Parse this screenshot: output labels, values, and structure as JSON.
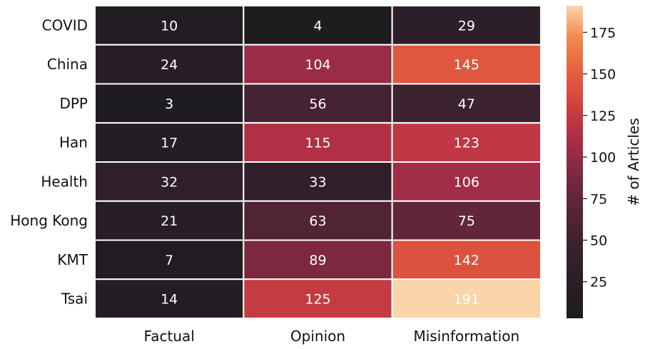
{
  "chart_data": {
    "type": "heatmap",
    "rows": [
      "COVID",
      "China",
      "DPP",
      "Han",
      "Health",
      "Hong Kong",
      "KMT",
      "Tsai"
    ],
    "columns": [
      "Factual",
      "Opinion",
      "Misinformation"
    ],
    "values": [
      [
        10,
        4,
        29
      ],
      [
        24,
        104,
        145
      ],
      [
        3,
        56,
        47
      ],
      [
        17,
        115,
        123
      ],
      [
        32,
        33,
        106
      ],
      [
        21,
        63,
        75
      ],
      [
        7,
        89,
        142
      ],
      [
        14,
        125,
        191
      ]
    ],
    "colorbar": {
      "label": "# of Articles",
      "min": 3,
      "max": 191,
      "ticks": [
        25,
        50,
        75,
        100,
        125,
        150,
        175
      ]
    },
    "colormap": "rocket",
    "colors": {
      "cell_text": "#ffffff",
      "cell_border": "#ffffff",
      "axis_text": "#111111"
    }
  }
}
